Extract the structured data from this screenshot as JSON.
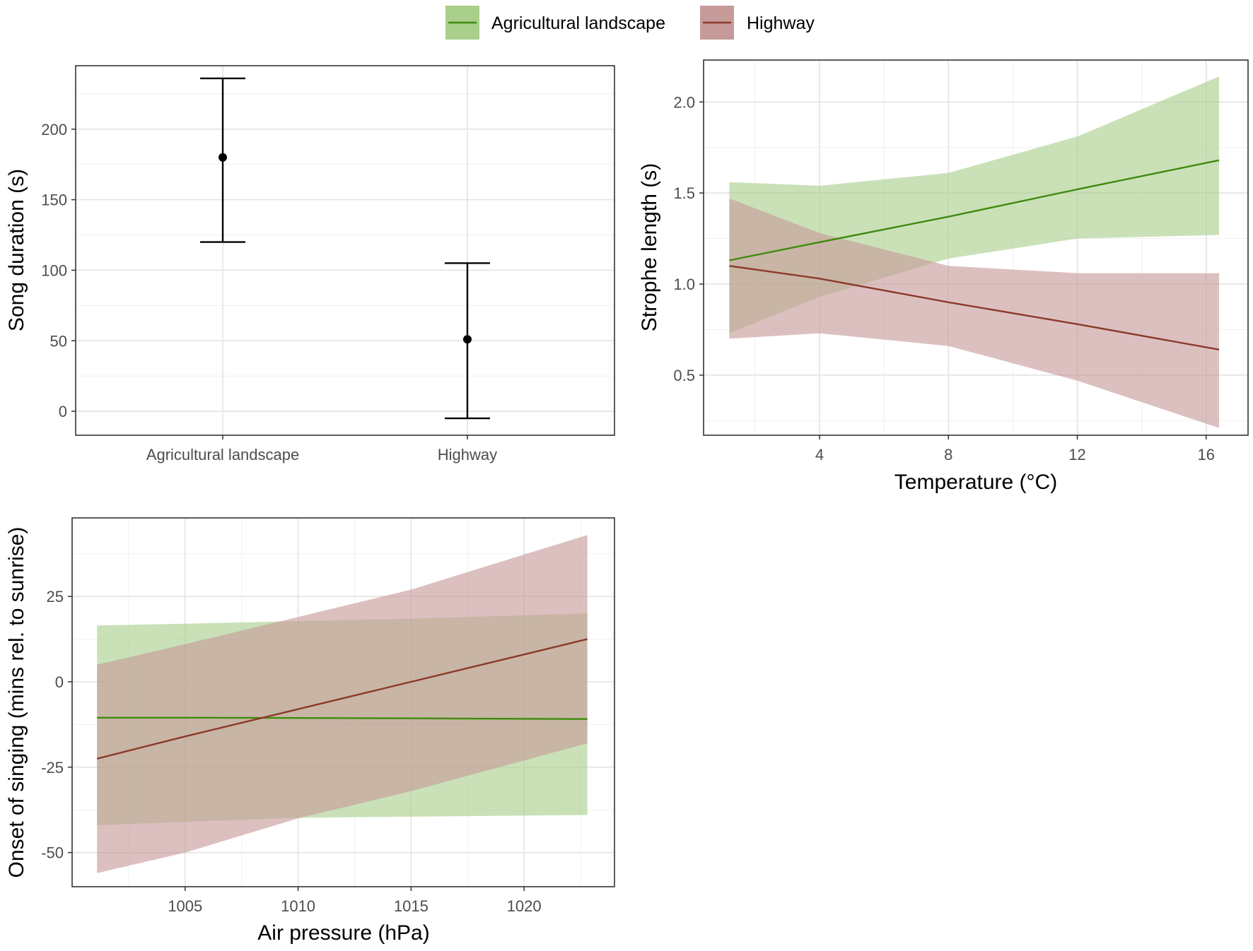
{
  "legend": {
    "items": [
      {
        "label": "Agricultural landscape",
        "color": "#3f8a0e",
        "fill": "#a9cf8a"
      },
      {
        "label": "Highway",
        "color": "#8b3a2a",
        "fill": "#c79a9a"
      }
    ]
  },
  "chart_data": [
    {
      "type": "errorbar",
      "title": "",
      "xlabel": "",
      "ylabel": "Song duration (s)",
      "categories": [
        "Agricultural landscape",
        "Highway"
      ],
      "estimate": [
        180,
        51
      ],
      "lower": [
        120,
        -5
      ],
      "upper": [
        236,
        105
      ],
      "ylim": [
        -17,
        245
      ],
      "yticks": [
        0,
        50,
        100,
        150,
        200
      ],
      "ytick_labels": [
        "0",
        "50",
        "100",
        "150",
        "200"
      ],
      "grid": true
    },
    {
      "type": "line",
      "title": "",
      "xlabel": "Temperature (°C)",
      "ylabel": "Strophe length (s)",
      "xlim": [
        0.4,
        17.3
      ],
      "ylim": [
        0.17,
        2.23
      ],
      "xticks": [
        4,
        8,
        12,
        16
      ],
      "xtick_labels": [
        "4",
        "8",
        "12",
        "16"
      ],
      "yticks": [
        0.5,
        1.0,
        1.5,
        2.0
      ],
      "ytick_labels": [
        "0.5",
        "1.0",
        "1.5",
        "2.0"
      ],
      "grid": true,
      "series": [
        {
          "name": "Agricultural landscape",
          "x": [
            1.2,
            4,
            8,
            12,
            16.4
          ],
          "y": [
            1.13,
            1.23,
            1.37,
            1.52,
            1.68
          ],
          "lower": [
            0.73,
            0.93,
            1.14,
            1.25,
            1.27
          ],
          "upper": [
            1.56,
            1.54,
            1.61,
            1.81,
            2.14
          ]
        },
        {
          "name": "Highway",
          "x": [
            1.2,
            4,
            8,
            12,
            16.4
          ],
          "y": [
            1.1,
            1.03,
            0.9,
            0.78,
            0.64
          ],
          "lower": [
            0.7,
            0.73,
            0.66,
            0.47,
            0.21
          ],
          "upper": [
            1.47,
            1.28,
            1.1,
            1.06,
            1.06
          ]
        }
      ]
    },
    {
      "type": "line",
      "title": "",
      "xlabel": "Air pressure (hPa)",
      "ylabel": "Onset of singing (mins rel. to sunrise)",
      "xlim": [
        1000,
        1024
      ],
      "ylim": [
        -60,
        48
      ],
      "xticks": [
        1005,
        1010,
        1015,
        1020
      ],
      "xtick_labels": [
        "1005",
        "1010",
        "1015",
        "1020"
      ],
      "yticks": [
        -50,
        -25,
        0,
        25
      ],
      "ytick_labels": [
        "-50",
        "-25",
        "0",
        "25"
      ],
      "grid": true,
      "series": [
        {
          "name": "Agricultural landscape",
          "x": [
            1001.1,
            1005,
            1010,
            1015,
            1022.8
          ],
          "y": [
            -10.5,
            -10.5,
            -10.6,
            -10.7,
            -10.9
          ],
          "lower": [
            -42,
            -41,
            -39.8,
            -39.5,
            -39
          ],
          "upper": [
            16.5,
            17,
            17.8,
            18.5,
            20
          ]
        },
        {
          "name": "Highway",
          "x": [
            1001.1,
            1005,
            1010,
            1015,
            1022.8
          ],
          "y": [
            -22.5,
            -16,
            -8,
            0,
            12.5
          ],
          "lower": [
            -56,
            -50,
            -40,
            -32,
            -18
          ],
          "upper": [
            5,
            11,
            19,
            27,
            43
          ]
        }
      ]
    }
  ]
}
